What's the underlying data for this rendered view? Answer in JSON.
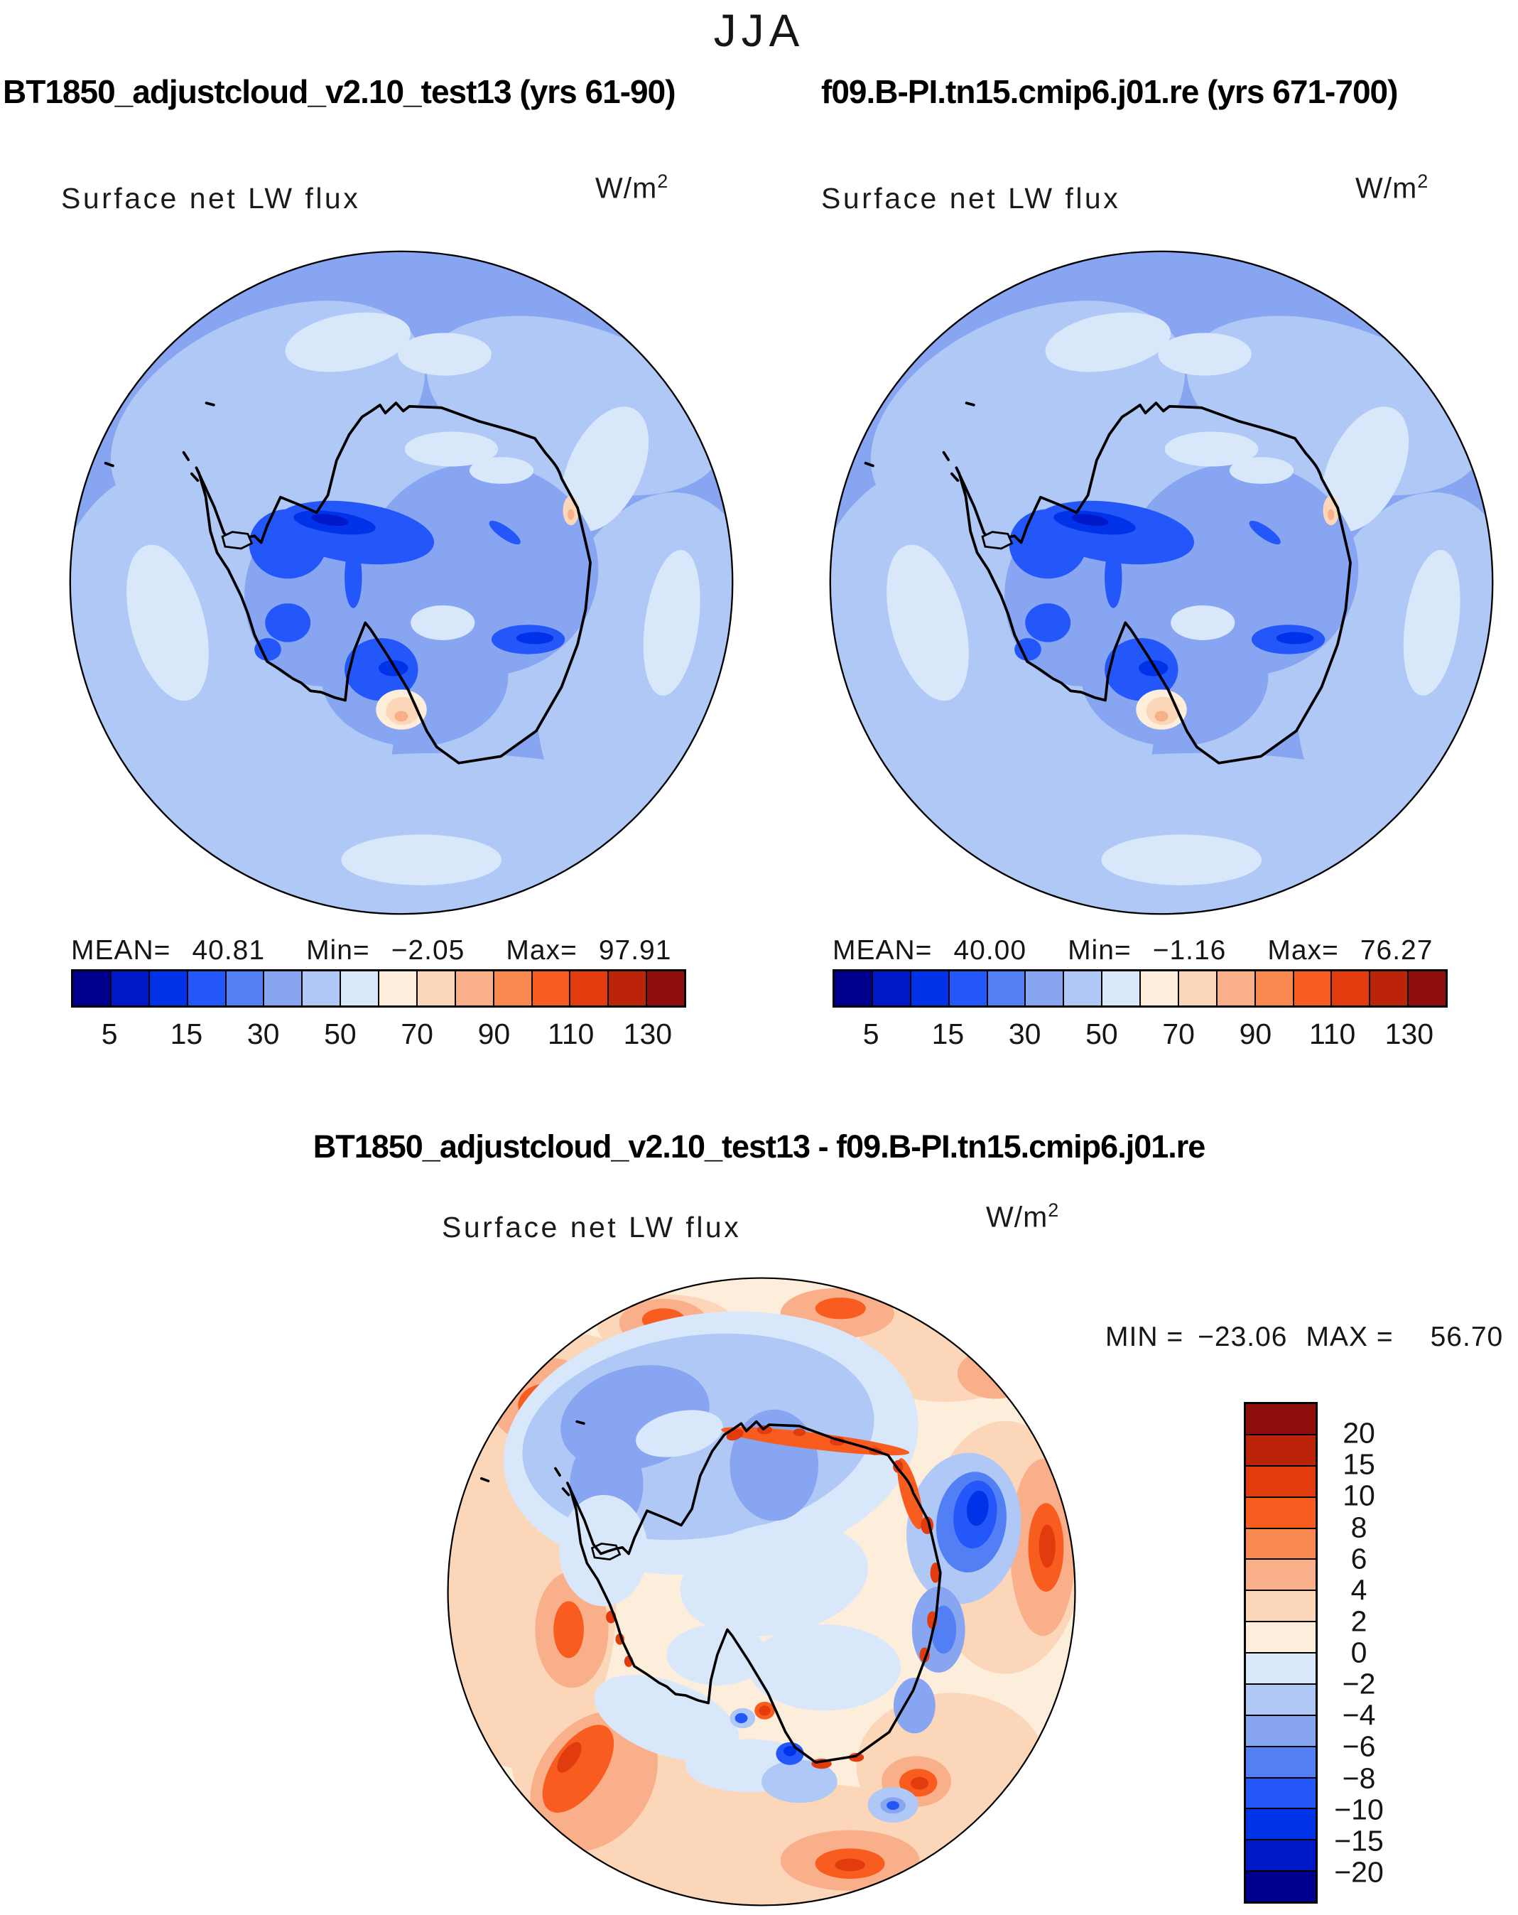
{
  "page_title": "JJA",
  "panels": {
    "left": {
      "run_title": "BT1850_adjustcloud_v2.10_test13 (yrs 61-90)",
      "field_label": "Surface net LW flux",
      "units_base": "W/m",
      "units_exp": "2",
      "stats": {
        "mean_label": "MEAN=",
        "mean": "40.81",
        "min_label": "Min=",
        "min": "−2.05",
        "max_label": "Max=",
        "max": "97.91"
      }
    },
    "right": {
      "run_title": "f09.B-PI.tn15.cmip6.j01.re (yrs 671-700)",
      "field_label": "Surface net LW flux",
      "units_base": "W/m",
      "units_exp": "2",
      "stats": {
        "mean_label": "MEAN=",
        "mean": "40.00",
        "min_label": "Min=",
        "min": "−1.16",
        "max_label": "Max=",
        "max": "76.27"
      }
    }
  },
  "difference": {
    "run_title": "BT1850_adjustcloud_v2.10_test13 - f09.B-PI.tn15.cmip6.j01.re",
    "field_label": "Surface net LW flux",
    "units_base": "W/m",
    "units_exp": "2",
    "range": {
      "min_label": "MIN =",
      "min": "−23.06",
      "max_label": "MAX =",
      "max": "56.70"
    }
  },
  "flux_colorbar": {
    "colors": [
      "#00008F",
      "#0019C8",
      "#0033E8",
      "#2457FA",
      "#537FF4",
      "#87A5F0",
      "#B0C8F6",
      "#D9E7FB",
      "#FDEEDC",
      "#FBD6B9",
      "#F9AF8A",
      "#F98950",
      "#F85C1F",
      "#E23B0E",
      "#BC2409",
      "#8F0E0B"
    ],
    "labels": [
      "5",
      "15",
      "30",
      "50",
      "70",
      "90",
      "110",
      "130"
    ],
    "label_boundaries": [
      1,
      3,
      5,
      7,
      9,
      11,
      13,
      15
    ]
  },
  "diff_colorbar": {
    "colors": [
      "#8F0E0B",
      "#BC2409",
      "#E23B0E",
      "#F85C1F",
      "#F98950",
      "#F9AF8A",
      "#FBD6B9",
      "#FDEEDC",
      "#D9E7FB",
      "#B0C8F6",
      "#87A5F0",
      "#537FF4",
      "#2457FA",
      "#0033E8",
      "#0019C8",
      "#00008F"
    ],
    "labels": [
      "20",
      "15",
      "10",
      "8",
      "6",
      "4",
      "2",
      "0",
      "−2",
      "−4",
      "−6",
      "−8",
      "−10",
      "−15",
      "−20"
    ],
    "label_boundaries": [
      1,
      2,
      3,
      4,
      5,
      6,
      7,
      8,
      9,
      10,
      11,
      12,
      13,
      14,
      15
    ]
  },
  "chart_data": {
    "type": "heatmap",
    "subtype": "south_polar_stereographic_contour_maps",
    "region": "Antarctica",
    "season": "JJA",
    "variable": "Surface net LW flux",
    "units": "W/m2",
    "legend_position": "below each flux map; vertical bar right of difference map",
    "panels": [
      {
        "name": "BT1850_adjustcloud_v2.10_test13",
        "years": "61-90",
        "mean": 40.81,
        "min": -2.05,
        "max": 97.91,
        "contour_levels": [
          5,
          10,
          15,
          20,
          30,
          40,
          50,
          60,
          70,
          80,
          90,
          100,
          110,
          120,
          130
        ],
        "labeled_levels": [
          5,
          15,
          30,
          50,
          70,
          90,
          110,
          130
        ]
      },
      {
        "name": "f09.B-PI.tn15.cmip6.j01.re",
        "years": "671-700",
        "mean": 40.0,
        "min": -1.16,
        "max": 76.27,
        "contour_levels": [
          5,
          10,
          15,
          20,
          30,
          40,
          50,
          60,
          70,
          80,
          90,
          100,
          110,
          120,
          130
        ],
        "labeled_levels": [
          5,
          15,
          30,
          50,
          70,
          90,
          110,
          130
        ]
      },
      {
        "name": "BT1850_adjustcloud_v2.10_test13 - f09.B-PI.tn15.cmip6.j01.re",
        "kind": "difference",
        "min": -23.06,
        "max": 56.7,
        "contour_levels": [
          -20,
          -15,
          -10,
          -8,
          -6,
          -4,
          -2,
          0,
          2,
          4,
          6,
          8,
          10,
          15,
          20
        ],
        "labeled_levels": [
          20,
          15,
          10,
          8,
          6,
          4,
          2,
          0,
          -2,
          -4,
          -6,
          -8,
          -10,
          -15,
          -20
        ]
      }
    ],
    "palette_blue_to_red": [
      "#00008F",
      "#0019C8",
      "#0033E8",
      "#2457FA",
      "#537FF4",
      "#87A5F0",
      "#B0C8F6",
      "#D9E7FB",
      "#FDEEDC",
      "#FBD6B9",
      "#F9AF8A",
      "#F98950",
      "#F85C1F",
      "#E23B0E",
      "#BC2409",
      "#8F0E0B"
    ]
  }
}
